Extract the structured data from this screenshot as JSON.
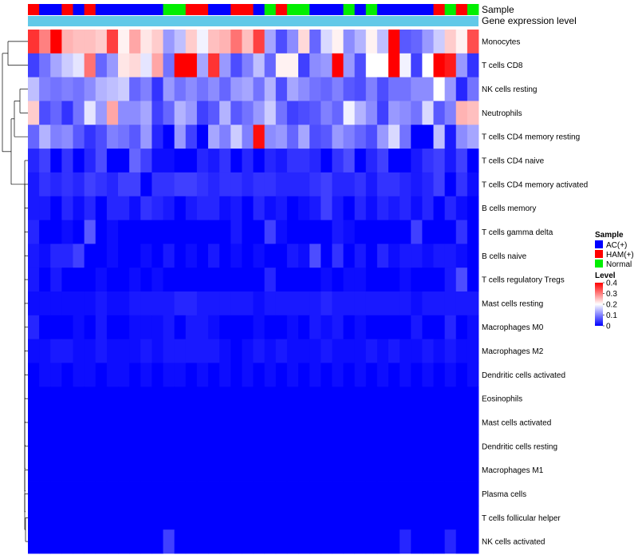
{
  "chart_data": {
    "type": "heatmap",
    "title": "",
    "annotation_rows": [
      {
        "label": "Sample",
        "kind": "categorical"
      },
      {
        "label": "Gene expression level",
        "kind": "constant",
        "color": "#62c9e8"
      }
    ],
    "samples": [
      "HAM(+)",
      "AC(+)",
      "AC(+)",
      "HAM(+)",
      "AC(+)",
      "HAM(+)",
      "AC(+)",
      "AC(+)",
      "AC(+)",
      "AC(+)",
      "AC(+)",
      "AC(+)",
      "Normal",
      "Normal",
      "HAM(+)",
      "HAM(+)",
      "AC(+)",
      "AC(+)",
      "HAM(+)",
      "HAM(+)",
      "AC(+)",
      "Normal",
      "HAM(+)",
      "Normal",
      "Normal",
      "AC(+)",
      "AC(+)",
      "AC(+)",
      "Normal",
      "AC(+)",
      "Normal",
      "AC(+)",
      "AC(+)",
      "AC(+)",
      "AC(+)",
      "AC(+)",
      "HAM(+)",
      "Normal",
      "HAM(+)",
      "Normal"
    ],
    "rows": [
      {
        "name": "Monocytes",
        "values": [
          0.36,
          0.3,
          0.4,
          0.26,
          0.25,
          0.25,
          0.24,
          0.35,
          0.21,
          0.27,
          0.22,
          0.24,
          0.12,
          0.15,
          0.24,
          0.19,
          0.25,
          0.26,
          0.31,
          0.25,
          0.35,
          0.13,
          0.06,
          0.11,
          0.23,
          0.08,
          0.17,
          0.21,
          0.11,
          0.14,
          0.21,
          0.15,
          0.4,
          0.07,
          0.08,
          0.12,
          0.16,
          0.24,
          0.21,
          0.34
        ]
      },
      {
        "name": "T cells CD8",
        "values": [
          0.05,
          0.09,
          0.13,
          0.16,
          0.18,
          0.31,
          0.08,
          0.12,
          0.22,
          0.23,
          0.18,
          0.27,
          0.09,
          0.4,
          0.4,
          0.13,
          0.36,
          0.12,
          0.06,
          0.1,
          0.15,
          0.08,
          0.21,
          0.21,
          0.05,
          0.11,
          0.12,
          0.42,
          0.12,
          0.06,
          0.2,
          0.2,
          0.42,
          0.19,
          0.05,
          0.2,
          0.42,
          0.38,
          0.12,
          0.04
        ]
      },
      {
        "name": "NK cells resting",
        "values": [
          0.15,
          0.1,
          0.09,
          0.1,
          0.09,
          0.11,
          0.14,
          0.15,
          0.16,
          0.08,
          0.1,
          0.04,
          0.12,
          0.09,
          0.11,
          0.09,
          0.11,
          0.08,
          0.12,
          0.13,
          0.09,
          0.14,
          0.06,
          0.13,
          0.11,
          0.09,
          0.08,
          0.1,
          0.07,
          0.06,
          0.1,
          0.06,
          0.09,
          0.09,
          0.11,
          0.11,
          0.2,
          0.12,
          0.03,
          0.09
        ]
      },
      {
        "name": "Neutrophils",
        "values": [
          0.24,
          0.06,
          0.08,
          0.04,
          0.09,
          0.18,
          0.12,
          0.27,
          0.11,
          0.11,
          0.13,
          0.05,
          0.08,
          0.14,
          0.12,
          0.05,
          0.07,
          0.14,
          0.07,
          0.09,
          0.12,
          0.16,
          0.09,
          0.05,
          0.06,
          0.07,
          0.1,
          0.08,
          0.19,
          0.14,
          0.11,
          0.05,
          0.12,
          0.11,
          0.09,
          0.17,
          0.07,
          0.1,
          0.26,
          0.25
        ]
      },
      {
        "name": "T cells CD4 memory resting",
        "values": [
          0.08,
          0.14,
          0.1,
          0.11,
          0.07,
          0.04,
          0.06,
          0.1,
          0.09,
          0.07,
          0.12,
          0.03,
          0.0,
          0.12,
          0.05,
          0.0,
          0.13,
          0.1,
          0.16,
          0.1,
          0.39,
          0.11,
          0.12,
          0.08,
          0.13,
          0.06,
          0.07,
          0.12,
          0.1,
          0.08,
          0.06,
          0.12,
          0.17,
          0.09,
          0.0,
          0.0,
          0.15,
          0.02,
          0.11,
          0.13
        ]
      },
      {
        "name": "T cells CD4 naive",
        "values": [
          0.03,
          0.05,
          0.0,
          0.04,
          0.0,
          0.03,
          0.06,
          0.0,
          0.0,
          0.08,
          0.05,
          0.01,
          0.01,
          0.0,
          0.0,
          0.03,
          0.02,
          0.04,
          0.0,
          0.03,
          0.0,
          0.03,
          0.02,
          0.04,
          0.04,
          0.03,
          0.0,
          0.04,
          0.06,
          0.0,
          0.03,
          0.05,
          0.0,
          0.0,
          0.02,
          0.04,
          0.05,
          0.02,
          0.05,
          0.0
        ]
      },
      {
        "name": "T cells CD4 memory activated",
        "values": [
          0.02,
          0.04,
          0.03,
          0.04,
          0.03,
          0.05,
          0.04,
          0.03,
          0.05,
          0.05,
          0.0,
          0.04,
          0.04,
          0.05,
          0.05,
          0.04,
          0.03,
          0.04,
          0.04,
          0.03,
          0.04,
          0.04,
          0.03,
          0.03,
          0.03,
          0.04,
          0.05,
          0.03,
          0.03,
          0.04,
          0.02,
          0.04,
          0.04,
          0.03,
          0.02,
          0.03,
          0.05,
          0.0,
          0.04,
          0.01
        ]
      },
      {
        "name": "B cells memory",
        "values": [
          0.02,
          0.02,
          0.0,
          0.03,
          0.01,
          0.03,
          0.0,
          0.03,
          0.03,
          0.01,
          0.04,
          0.03,
          0.02,
          0.0,
          0.02,
          0.03,
          0.03,
          0.01,
          0.02,
          0.0,
          0.03,
          0.01,
          0.02,
          0.0,
          0.01,
          0.02,
          0.05,
          0.02,
          0.0,
          0.03,
          0.01,
          0.03,
          0.02,
          0.03,
          0.01,
          0.03,
          0.0,
          0.03,
          0.01,
          0.0
        ]
      },
      {
        "name": "T cells gamma delta",
        "values": [
          0.03,
          0.0,
          0.0,
          0.01,
          0.0,
          0.07,
          0.0,
          0.01,
          0.0,
          0.0,
          0.0,
          0.0,
          0.0,
          0.0,
          0.0,
          0.0,
          0.0,
          0.0,
          0.02,
          0.0,
          0.0,
          0.05,
          0.01,
          0.0,
          0.0,
          0.0,
          0.0,
          0.02,
          0.01,
          0.0,
          0.0,
          0.0,
          0.0,
          0.0,
          0.05,
          0.0,
          0.0,
          0.0,
          0.04,
          0.0
        ]
      },
      {
        "name": "B cells naive",
        "values": [
          0.02,
          0.01,
          0.03,
          0.03,
          0.05,
          0.0,
          0.0,
          0.01,
          0.0,
          0.0,
          0.01,
          0.0,
          0.02,
          0.0,
          0.01,
          0.0,
          0.02,
          0.0,
          0.01,
          0.0,
          0.01,
          0.0,
          0.0,
          0.02,
          0.01,
          0.06,
          0.0,
          0.04,
          0.0,
          0.02,
          0.0,
          0.03,
          0.01,
          0.02,
          0.02,
          0.01,
          0.02,
          0.02,
          0.01,
          0.0
        ]
      },
      {
        "name": "T cells regulatory  Tregs",
        "values": [
          0.02,
          0.0,
          0.02,
          0.0,
          0.0,
          0.0,
          0.01,
          0.0,
          0.0,
          0.01,
          0.0,
          0.01,
          0.0,
          0.0,
          0.0,
          0.0,
          0.0,
          0.0,
          0.0,
          0.0,
          0.0,
          0.03,
          0.0,
          0.0,
          0.0,
          0.0,
          0.01,
          0.0,
          0.01,
          0.01,
          0.0,
          0.0,
          0.0,
          0.01,
          0.0,
          0.0,
          0.0,
          0.02,
          0.06,
          0.0
        ]
      },
      {
        "name": "Mast cells resting",
        "values": [
          0.01,
          0.01,
          0.01,
          0.01,
          0.01,
          0.01,
          0.02,
          0.01,
          0.01,
          0.02,
          0.02,
          0.02,
          0.02,
          0.03,
          0.03,
          0.02,
          0.02,
          0.02,
          0.02,
          0.02,
          0.01,
          0.02,
          0.02,
          0.02,
          0.02,
          0.02,
          0.03,
          0.02,
          0.02,
          0.02,
          0.02,
          0.02,
          0.02,
          0.02,
          0.01,
          0.02,
          0.02,
          0.02,
          0.02,
          0.02
        ]
      },
      {
        "name": "Macrophages M0",
        "values": [
          0.03,
          0.0,
          0.0,
          0.0,
          0.01,
          0.0,
          0.02,
          0.0,
          0.0,
          0.01,
          0.01,
          0.01,
          0.02,
          0.0,
          0.02,
          0.02,
          0.01,
          0.0,
          0.0,
          0.0,
          0.01,
          0.0,
          0.0,
          0.01,
          0.0,
          0.02,
          0.01,
          0.02,
          0.0,
          0.01,
          0.0,
          0.0,
          0.0,
          0.0,
          0.02,
          0.0,
          0.0,
          0.03,
          0.0,
          0.01
        ]
      },
      {
        "name": "Macrophages M2",
        "values": [
          0.01,
          0.01,
          0.02,
          0.02,
          0.01,
          0.01,
          0.02,
          0.01,
          0.01,
          0.01,
          0.02,
          0.01,
          0.02,
          0.02,
          0.02,
          0.02,
          0.02,
          0.01,
          0.0,
          0.01,
          0.02,
          0.01,
          0.02,
          0.01,
          0.01,
          0.01,
          0.02,
          0.01,
          0.01,
          0.01,
          0.02,
          0.01,
          0.02,
          0.01,
          0.01,
          0.02,
          0.01,
          0.02,
          0.01,
          0.01
        ]
      },
      {
        "name": "Dendritic cells activated",
        "values": [
          0.0,
          0.01,
          0.01,
          0.0,
          0.01,
          0.01,
          0.0,
          0.01,
          0.01,
          0.0,
          0.01,
          0.0,
          0.01,
          0.01,
          0.0,
          0.01,
          0.0,
          0.01,
          0.0,
          0.01,
          0.0,
          0.01,
          0.0,
          0.01,
          0.0,
          0.01,
          0.0,
          0.01,
          0.0,
          0.01,
          0.0,
          0.01,
          0.0,
          0.01,
          0.0,
          0.01,
          0.0,
          0.01,
          0.0,
          0.01
        ]
      },
      {
        "name": "Eosinophils",
        "values": [
          0,
          0,
          0,
          0,
          0,
          0,
          0,
          0,
          0,
          0,
          0,
          0,
          0,
          0,
          0,
          0,
          0,
          0,
          0,
          0,
          0,
          0,
          0,
          0,
          0,
          0,
          0,
          0,
          0,
          0,
          0,
          0,
          0,
          0,
          0,
          0,
          0,
          0,
          0,
          0
        ]
      },
      {
        "name": "Mast cells activated",
        "values": [
          0,
          0,
          0,
          0,
          0,
          0,
          0,
          0,
          0,
          0,
          0,
          0,
          0,
          0,
          0,
          0,
          0,
          0,
          0,
          0,
          0,
          0,
          0,
          0,
          0,
          0,
          0,
          0,
          0,
          0,
          0,
          0,
          0,
          0,
          0,
          0,
          0,
          0,
          0,
          0
        ]
      },
      {
        "name": "Dendritic cells resting",
        "values": [
          0,
          0,
          0,
          0,
          0,
          0,
          0,
          0,
          0,
          0,
          0,
          0,
          0,
          0,
          0,
          0,
          0,
          0,
          0,
          0,
          0,
          0,
          0,
          0,
          0,
          0,
          0,
          0,
          0,
          0,
          0,
          0,
          0,
          0,
          0,
          0,
          0,
          0,
          0,
          0
        ]
      },
      {
        "name": "Macrophages M1",
        "values": [
          0,
          0,
          0,
          0,
          0,
          0,
          0,
          0,
          0,
          0,
          0,
          0,
          0,
          0,
          0,
          0,
          0,
          0,
          0,
          0,
          0,
          0,
          0,
          0,
          0,
          0,
          0,
          0,
          0,
          0,
          0,
          0,
          0,
          0,
          0,
          0,
          0,
          0,
          0,
          0
        ]
      },
      {
        "name": "Plasma cells",
        "values": [
          0,
          0,
          0,
          0,
          0,
          0,
          0,
          0,
          0,
          0,
          0,
          0,
          0,
          0,
          0,
          0,
          0,
          0,
          0,
          0,
          0,
          0,
          0,
          0,
          0,
          0,
          0,
          0,
          0,
          0,
          0,
          0,
          0,
          0,
          0,
          0,
          0,
          0,
          0,
          0
        ]
      },
      {
        "name": "T cells follicular helper",
        "values": [
          0,
          0,
          0,
          0,
          0,
          0,
          0,
          0,
          0,
          0,
          0,
          0,
          0,
          0,
          0,
          0,
          0,
          0,
          0,
          0,
          0,
          0,
          0,
          0,
          0,
          0,
          0,
          0,
          0,
          0,
          0,
          0,
          0,
          0,
          0,
          0,
          0,
          0,
          0,
          0
        ]
      },
      {
        "name": "NK cells activated",
        "values": [
          0,
          0,
          0,
          0,
          0,
          0,
          0,
          0,
          0,
          0,
          0,
          0,
          0.05,
          0,
          0,
          0,
          0,
          0,
          0,
          0,
          0,
          0,
          0,
          0,
          0,
          0,
          0,
          0,
          0,
          0,
          0,
          0,
          0,
          0.03,
          0,
          0,
          0,
          0.03,
          0,
          0
        ]
      }
    ],
    "legend": {
      "sample": {
        "title": "Sample",
        "entries": [
          {
            "label": "AC(+)",
            "color": "#0000ff"
          },
          {
            "label": "HAM(+)",
            "color": "#ff0000"
          },
          {
            "label": "Normal",
            "color": "#00ee00"
          }
        ]
      },
      "level": {
        "title": "Level",
        "range": [
          0,
          0.4
        ],
        "ticks": [
          0.4,
          0.3,
          0.2,
          0.1,
          0
        ],
        "tick_labels": [
          "0.4",
          "0.3",
          "0.2",
          "0.1",
          "0"
        ],
        "colors": [
          "#0000ff",
          "#ffffff",
          "#ff0000"
        ]
      }
    },
    "row_dendrogram": "shown on left",
    "grid": false
  }
}
